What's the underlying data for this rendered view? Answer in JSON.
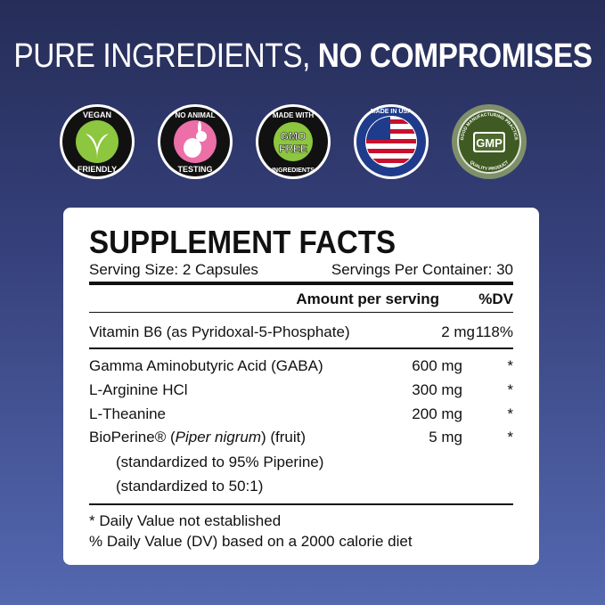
{
  "headline": {
    "regular": "PURE INGREDIENTS, ",
    "bold": "NO COMPROMISES"
  },
  "badges": [
    {
      "name": "vegan-friendly-badge",
      "top": "VEGAN",
      "bottom": "FRIENDLY",
      "color": "#8dc63f"
    },
    {
      "name": "no-animal-testing-badge",
      "top": "NO ANIMAL",
      "bottom": "TESTING",
      "color": "#ec6fa8"
    },
    {
      "name": "gmo-free-badge",
      "top": "MADE WITH",
      "center": "GMO FREE",
      "bottom": "INGREDIENTS",
      "color": "#8dc63f"
    },
    {
      "name": "made-in-usa-badge",
      "text": "MADE IN USA"
    },
    {
      "name": "gmp-badge",
      "top": "GOOD MANUFACTURING PRACTICE",
      "center": "GMP",
      "bottom": "QUALITY PRODUCT",
      "color": "#4e6a2e"
    }
  ],
  "facts": {
    "title": "SUPPLEMENT FACTS",
    "serving_size": "Serving Size: 2 Capsules",
    "servings_per_container": "Servings Per Container: 30",
    "amount_header": "Amount per serving",
    "dv_header": "%DV",
    "vitamin": {
      "name": "Vitamin B6 (as Pyridoxal-5-Phosphate)",
      "amount": "2 mg",
      "dv": "118%"
    },
    "ingredients": [
      {
        "name": "Gamma Aminobutyric Acid (GABA)",
        "amount": "600 mg",
        "dv": "*"
      },
      {
        "name": "L-Arginine HCl",
        "amount": "300 mg",
        "dv": "*"
      },
      {
        "name": "L-Theanine",
        "amount": "200 mg",
        "dv": "*"
      },
      {
        "name_pre": "BioPerine® (",
        "name_italic": "Piper nigrum",
        "name_post": ") (fruit)",
        "amount": "5 mg",
        "dv": "*"
      }
    ],
    "sub_lines": [
      "(standardized to 95% Piperine)",
      "(standardized to 50:1)"
    ],
    "footnotes": [
      "*  Daily Value not established",
      "% Daily Value (DV) based on a 2000 calorie diet"
    ]
  }
}
